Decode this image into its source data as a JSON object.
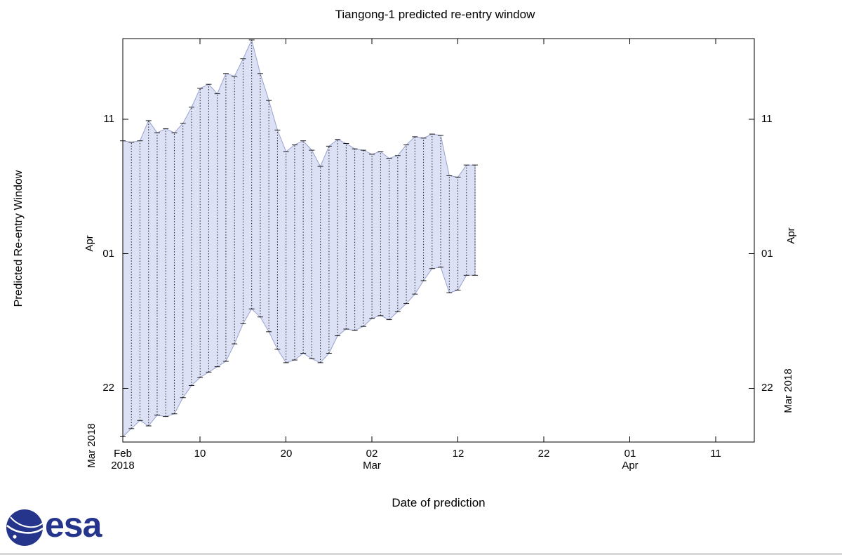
{
  "page": {
    "background": "#ffffff"
  },
  "chart_data": {
    "type": "area",
    "subtype": "prediction-window band with dashed error bars per prediction date",
    "title": "Tiangong-1 predicted re-entry window",
    "xlabel": "Date of prediction",
    "ylabel": "Predicted Re-entry Window",
    "grid": false,
    "legend": "none",
    "x_axis": {
      "unit": "days after 2018-02-01",
      "range": [
        0,
        73.5
      ],
      "ticks": [
        {
          "pos": 0,
          "line1": "Feb",
          "line2": "2018"
        },
        {
          "pos": 9,
          "line1": "10"
        },
        {
          "pos": 19,
          "line1": "20"
        },
        {
          "pos": 29,
          "line1": "02",
          "line2": "Mar"
        },
        {
          "pos": 39,
          "line1": "12"
        },
        {
          "pos": 49,
          "line1": "22"
        },
        {
          "pos": 59,
          "line1": "01",
          "line2": "Apr"
        },
        {
          "pos": 69,
          "line1": "11"
        }
      ]
    },
    "y_axis": {
      "unit": "days after 2018-03-01 (32 = Apr 01)",
      "range": [
        18,
        48
      ],
      "ticks": [
        {
          "pos": 22,
          "label": "22"
        },
        {
          "pos": 32,
          "label": "01"
        },
        {
          "pos": 42,
          "label": "11"
        }
      ],
      "month_label_low": "Mar 2018",
      "month_label_high": "Apr"
    },
    "colors": {
      "band_fill": "#dde1f5",
      "band_edge": "#9aa2d0",
      "error_bar": "#1c1c1c",
      "axis": "#000000"
    },
    "series": [
      {
        "date": "Feb 01",
        "x": 0,
        "low": 18.4,
        "high": 40.4
      },
      {
        "date": "Feb 02",
        "x": 1,
        "low": 19.0,
        "high": 40.3
      },
      {
        "date": "Feb 03",
        "x": 2,
        "low": 19.6,
        "high": 40.4
      },
      {
        "date": "Feb 04",
        "x": 3,
        "low": 19.2,
        "high": 41.9
      },
      {
        "date": "Feb 05",
        "x": 4,
        "low": 20.0,
        "high": 41.0
      },
      {
        "date": "Feb 06",
        "x": 5,
        "low": 19.9,
        "high": 41.3
      },
      {
        "date": "Feb 07",
        "x": 6,
        "low": 20.1,
        "high": 41.0
      },
      {
        "date": "Feb 08",
        "x": 7,
        "low": 21.3,
        "high": 41.7
      },
      {
        "date": "Feb 09",
        "x": 8,
        "low": 22.2,
        "high": 42.9
      },
      {
        "date": "Feb 10",
        "x": 9,
        "low": 22.8,
        "high": 44.3
      },
      {
        "date": "Feb 11",
        "x": 10,
        "low": 23.2,
        "high": 44.6
      },
      {
        "date": "Feb 12",
        "x": 11,
        "low": 23.6,
        "high": 43.9
      },
      {
        "date": "Feb 13",
        "x": 12,
        "low": 24.0,
        "high": 45.4
      },
      {
        "date": "Feb 14",
        "x": 13,
        "low": 25.3,
        "high": 45.2
      },
      {
        "date": "Feb 15",
        "x": 14,
        "low": 26.8,
        "high": 46.5
      },
      {
        "date": "Feb 16",
        "x": 15,
        "low": 27.9,
        "high": 47.9
      },
      {
        "date": "Feb 17",
        "x": 16,
        "low": 27.3,
        "high": 45.4
      },
      {
        "date": "Feb 18",
        "x": 17,
        "low": 26.2,
        "high": 43.4
      },
      {
        "date": "Feb 19",
        "x": 18,
        "low": 24.9,
        "high": 41.2
      },
      {
        "date": "Feb 20",
        "x": 19,
        "low": 23.9,
        "high": 39.6
      },
      {
        "date": "Feb 21",
        "x": 20,
        "low": 24.1,
        "high": 40.1
      },
      {
        "date": "Feb 22",
        "x": 21,
        "low": 24.6,
        "high": 40.4
      },
      {
        "date": "Feb 23",
        "x": 22,
        "low": 24.2,
        "high": 39.7
      },
      {
        "date": "Feb 24",
        "x": 23,
        "low": 23.9,
        "high": 38.5
      },
      {
        "date": "Feb 25",
        "x": 24,
        "low": 24.6,
        "high": 40.0
      },
      {
        "date": "Feb 26",
        "x": 25,
        "low": 25.9,
        "high": 40.5
      },
      {
        "date": "Feb 27",
        "x": 26,
        "low": 26.4,
        "high": 40.2
      },
      {
        "date": "Feb 28",
        "x": 27,
        "low": 26.3,
        "high": 39.8
      },
      {
        "date": "Mar 01",
        "x": 28,
        "low": 26.6,
        "high": 39.7
      },
      {
        "date": "Mar 02",
        "x": 29,
        "low": 27.2,
        "high": 39.4
      },
      {
        "date": "Mar 03",
        "x": 30,
        "low": 27.4,
        "high": 39.6
      },
      {
        "date": "Mar 04",
        "x": 31,
        "low": 27.1,
        "high": 39.1
      },
      {
        "date": "Mar 05",
        "x": 32,
        "low": 27.7,
        "high": 39.3
      },
      {
        "date": "Mar 06",
        "x": 33,
        "low": 28.3,
        "high": 40.1
      },
      {
        "date": "Mar 07",
        "x": 34,
        "low": 29.0,
        "high": 40.7
      },
      {
        "date": "Mar 08",
        "x": 35,
        "low": 30.0,
        "high": 40.6
      },
      {
        "date": "Mar 09",
        "x": 36,
        "low": 30.9,
        "high": 40.9
      },
      {
        "date": "Mar 10",
        "x": 37,
        "low": 31.0,
        "high": 40.8
      },
      {
        "date": "Mar 11",
        "x": 38,
        "low": 29.1,
        "high": 37.8
      },
      {
        "date": "Mar 12",
        "x": 39,
        "low": 29.3,
        "high": 37.7
      },
      {
        "date": "Mar 13",
        "x": 40,
        "low": 30.4,
        "high": 38.6
      },
      {
        "date": "Mar 14",
        "x": 41,
        "low": 30.4,
        "high": 38.6
      }
    ]
  },
  "branding": {
    "logo_text": "esa",
    "logo_color": "#26358c"
  }
}
